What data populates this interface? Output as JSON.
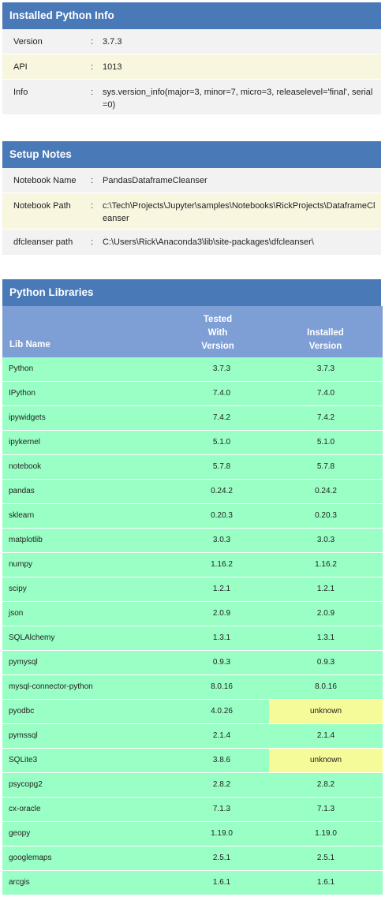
{
  "python_info": {
    "title": "Installed Python Info",
    "rows": [
      {
        "label": "Version",
        "value": "3.7.3"
      },
      {
        "label": "API",
        "value": "1013"
      },
      {
        "label": "Info",
        "value": "sys.version_info(major=3, minor=7, micro=3, releaselevel='final', serial=0)"
      }
    ]
  },
  "setup_notes": {
    "title": "Setup Notes",
    "rows": [
      {
        "label": "Notebook Name",
        "value": "PandasDataframeCleanser"
      },
      {
        "label": "Notebook Path",
        "value": "c:\\Tech\\Projects\\Jupyter\\samples\\Notebooks\\RickProjects\\DataframeCleanser"
      },
      {
        "label": "dfcleanser path",
        "value": "C:\\Users\\Rick\\Anaconda3\\lib\\site-packages\\dfcleanser\\"
      }
    ]
  },
  "libraries": {
    "title": "Python Libraries",
    "col_name": "Lib Name",
    "col_tested_lines": [
      "Tested",
      "With",
      "Version"
    ],
    "col_installed_lines": [
      "Installed",
      "Version"
    ],
    "rows": [
      {
        "name": "Python",
        "tested": "3.7.3",
        "installed": "3.7.3"
      },
      {
        "name": "IPython",
        "tested": "7.4.0",
        "installed": "7.4.0"
      },
      {
        "name": "ipywidgets",
        "tested": "7.4.2",
        "installed": "7.4.2"
      },
      {
        "name": "ipykernel",
        "tested": "5.1.0",
        "installed": "5.1.0"
      },
      {
        "name": "notebook",
        "tested": "5.7.8",
        "installed": "5.7.8"
      },
      {
        "name": "pandas",
        "tested": "0.24.2",
        "installed": "0.24.2"
      },
      {
        "name": "sklearn",
        "tested": "0.20.3",
        "installed": "0.20.3"
      },
      {
        "name": "matplotlib",
        "tested": "3.0.3",
        "installed": "3.0.3"
      },
      {
        "name": "numpy",
        "tested": "1.16.2",
        "installed": "1.16.2"
      },
      {
        "name": "scipy",
        "tested": "1.2.1",
        "installed": "1.2.1"
      },
      {
        "name": "json",
        "tested": "2.0.9",
        "installed": "2.0.9"
      },
      {
        "name": "SQLAlchemy",
        "tested": "1.3.1",
        "installed": "1.3.1"
      },
      {
        "name": "pymysql",
        "tested": "0.9.3",
        "installed": "0.9.3"
      },
      {
        "name": "mysql-connector-python",
        "tested": "8.0.16",
        "installed": "8.0.16"
      },
      {
        "name": "pyodbc",
        "tested": "4.0.26",
        "installed": "unknown"
      },
      {
        "name": "pymssql",
        "tested": "2.1.4",
        "installed": "2.1.4"
      },
      {
        "name": "SQLite3",
        "tested": "3.8.6",
        "installed": "unknown"
      },
      {
        "name": "psycopg2",
        "tested": "2.8.2",
        "installed": "2.8.2"
      },
      {
        "name": "cx-oracle",
        "tested": "7.1.3",
        "installed": "7.1.3"
      },
      {
        "name": "geopy",
        "tested": "1.19.0",
        "installed": "1.19.0"
      },
      {
        "name": "googlemaps",
        "tested": "2.5.1",
        "installed": "2.5.1"
      },
      {
        "name": "arcgis",
        "tested": "1.6.1",
        "installed": "1.6.1"
      }
    ]
  },
  "colors": {
    "header_blue": "#4a79b8",
    "lib_header_blue": "#7e9fd6",
    "row_green": "#99ffc4",
    "unknown_yellow": "#f6fb9a"
  }
}
